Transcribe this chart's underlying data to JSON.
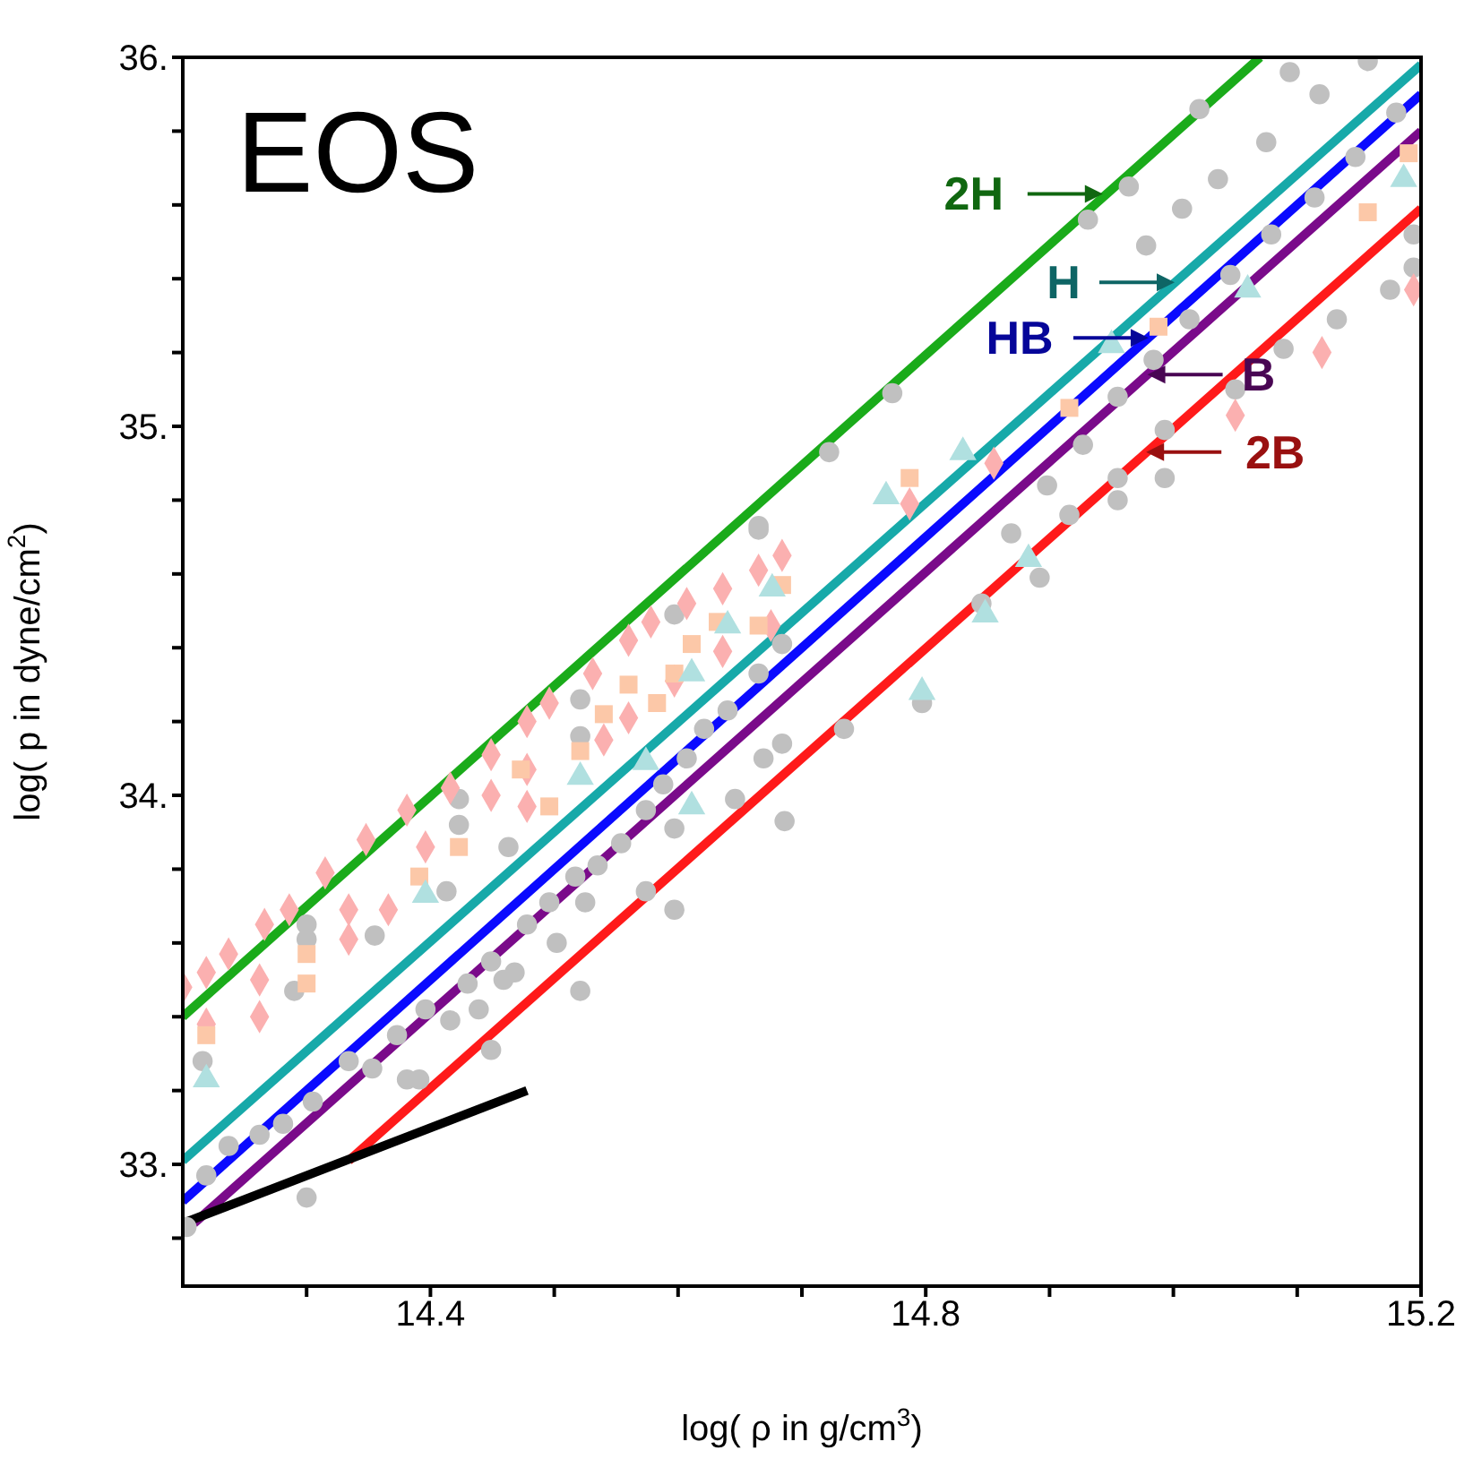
{
  "chart_data": {
    "type": "scatter",
    "title": "EOS",
    "xlabel": "log( ρ in g/cm$^{3}$)",
    "ylabel": "log( p in dyne/cm$^{2}$)",
    "xlim": [
      14.2,
      15.2
    ],
    "ylim": [
      32.67,
      36.0
    ],
    "xticks": [
      {
        "value": 14.3,
        "label": null
      },
      {
        "value": 14.4,
        "label": "14.4"
      },
      {
        "value": 14.5,
        "label": null
      },
      {
        "value": 14.6,
        "label": null
      },
      {
        "value": 14.7,
        "label": null
      },
      {
        "value": 14.8,
        "label": "14.8"
      },
      {
        "value": 14.9,
        "label": null
      },
      {
        "value": 15.0,
        "label": null
      },
      {
        "value": 15.1,
        "label": null
      },
      {
        "value": 15.2,
        "label": "15.2"
      }
    ],
    "yticks": [
      {
        "value": 32.8,
        "label": null
      },
      {
        "value": 33,
        "label": "33."
      },
      {
        "value": 33.2,
        "label": null
      },
      {
        "value": 33.4,
        "label": null
      },
      {
        "value": 33.6,
        "label": null
      },
      {
        "value": 33.8,
        "label": null
      },
      {
        "value": 34,
        "label": "34."
      },
      {
        "value": 34.2,
        "label": null
      },
      {
        "value": 34.4,
        "label": null
      },
      {
        "value": 34.6,
        "label": null
      },
      {
        "value": 34.8,
        "label": null
      },
      {
        "value": 35,
        "label": "35."
      },
      {
        "value": 35.2,
        "label": null
      },
      {
        "value": 35.4,
        "label": null
      },
      {
        "value": 35.6,
        "label": null
      },
      {
        "value": 35.8,
        "label": null
      },
      {
        "value": 36,
        "label": "36."
      }
    ],
    "series": [
      {
        "marker": "circle",
        "color": "#c0c0c0",
        "x": [
          14.391,
          14.449,
          14.521,
          14.597,
          14.686,
          14.797,
          14.892,
          14.993,
          15.194,
          14.3,
          14.459,
          14.525,
          14.597,
          14.669,
          14.734,
          14.845,
          14.955,
          15.194,
          14.964,
          15.007,
          15.036,
          15.075,
          15.118,
          15.157,
          14.931,
          14.978,
          15.021,
          15.094,
          14.773,
          14.722,
          14.665,
          14.3,
          14.3,
          14.29,
          14.355,
          14.423,
          14.423,
          14.463,
          14.413,
          14.521,
          14.521,
          14.597,
          14.665,
          14.216,
          14.203,
          14.219,
          14.237,
          14.262,
          14.281,
          14.305,
          14.334,
          14.353,
          14.373,
          14.381,
          14.396,
          14.416,
          14.43,
          14.449,
          14.468,
          14.478,
          14.496,
          14.517,
          14.535,
          14.554,
          14.574,
          14.588,
          14.607,
          14.621,
          14.64,
          14.665,
          14.684,
          14.684,
          14.646,
          14.574,
          14.502,
          14.439,
          14.869,
          14.898,
          14.927,
          14.955,
          14.984,
          15.013,
          15.046,
          15.079,
          15.114,
          15.147,
          15.18,
          15.05,
          15.089,
          15.132,
          15.175,
          14.955,
          14.916,
          14.993
        ],
        "values": [
          33.23,
          33.31,
          33.47,
          33.69,
          33.93,
          34.25,
          34.59,
          34.86,
          35.43,
          32.91,
          33.5,
          33.71,
          33.91,
          34.1,
          34.18,
          34.52,
          34.8,
          35.52,
          35.65,
          35.59,
          35.67,
          35.77,
          35.9,
          35.99,
          35.56,
          35.49,
          35.86,
          35.96,
          35.09,
          34.93,
          34.72,
          33.65,
          33.61,
          33.47,
          33.62,
          33.99,
          33.92,
          33.86,
          33.74,
          34.26,
          34.16,
          34.49,
          34.73,
          33.28,
          32.83,
          32.97,
          33.05,
          33.08,
          33.11,
          33.17,
          33.28,
          33.26,
          33.35,
          33.23,
          33.42,
          33.39,
          33.49,
          33.55,
          33.52,
          33.65,
          33.71,
          33.78,
          33.81,
          33.87,
          33.96,
          34.03,
          34.1,
          34.18,
          34.23,
          34.33,
          34.41,
          34.14,
          33.99,
          33.74,
          33.6,
          33.42,
          34.71,
          34.84,
          34.95,
          35.08,
          35.18,
          35.29,
          35.41,
          35.52,
          35.62,
          35.73,
          35.85,
          35.1,
          35.21,
          35.29,
          35.37,
          34.86,
          34.76,
          34.99
        ]
      },
      {
        "marker": "diamond",
        "color": "#fbb0b0",
        "x": [
          14.2,
          14.219,
          14.237,
          14.266,
          14.286,
          14.315,
          14.348,
          14.381,
          14.416,
          14.449,
          14.478,
          14.496,
          14.531,
          14.56,
          14.578,
          14.607,
          14.636,
          14.665,
          14.684,
          14.787,
          14.855,
          15.05,
          15.12,
          15.194,
          14.219,
          14.262,
          14.262,
          14.334,
          14.334,
          14.366,
          14.396,
          14.449,
          14.478,
          14.478,
          14.54,
          14.56,
          14.597,
          14.636,
          14.675
        ],
        "values": [
          33.48,
          33.52,
          33.57,
          33.65,
          33.69,
          33.79,
          33.88,
          33.96,
          34.02,
          34.11,
          34.2,
          34.25,
          34.33,
          34.42,
          34.47,
          34.52,
          34.56,
          34.61,
          34.65,
          34.79,
          34.9,
          35.03,
          35.2,
          35.37,
          33.38,
          33.4,
          33.5,
          33.61,
          33.69,
          33.69,
          33.86,
          34.0,
          33.97,
          34.07,
          34.15,
          34.21,
          34.31,
          34.39,
          34.46
        ]
      },
      {
        "marker": "square",
        "color": "#fcc8a8",
        "x": [
          14.219,
          14.3,
          14.3,
          14.391,
          14.423,
          14.473,
          14.496,
          14.521,
          14.54,
          14.56,
          14.583,
          14.597,
          14.611,
          14.632,
          14.665,
          14.684,
          14.787,
          14.916,
          14.988,
          15.157,
          15.19
        ],
        "values": [
          33.35,
          33.57,
          33.49,
          33.78,
          33.86,
          34.07,
          33.97,
          34.12,
          34.22,
          34.3,
          34.25,
          34.33,
          34.41,
          34.47,
          34.46,
          34.57,
          34.86,
          35.05,
          35.27,
          35.58,
          35.74
        ]
      },
      {
        "marker": "triangle",
        "color": "#b0e0e0",
        "x": [
          14.219,
          14.396,
          14.521,
          14.574,
          14.611,
          14.611,
          14.64,
          14.676,
          14.768,
          14.83,
          14.95,
          15.06,
          15.186,
          14.883,
          14.848,
          14.797
        ],
        "values": [
          33.23,
          33.73,
          34.05,
          34.09,
          34.33,
          33.97,
          34.46,
          34.56,
          34.81,
          34.93,
          35.22,
          35.37,
          35.67,
          34.64,
          34.49,
          34.28
        ]
      },
      {
        "type": "line",
        "marker": "none",
        "color": "#1aab1a",
        "x": [
          14.2,
          15.07
        ],
        "values": [
          33.4,
          36.0
        ]
      },
      {
        "type": "line",
        "marker": "none",
        "color": "#17a9a9",
        "x": [
          14.2,
          15.2
        ],
        "values": [
          33.01,
          35.98
        ]
      },
      {
        "type": "line",
        "marker": "none",
        "color": "#0a0aff",
        "x": [
          14.2,
          15.2
        ],
        "values": [
          32.9,
          35.9
        ]
      },
      {
        "type": "line",
        "marker": "none",
        "color": "#7a0a8a",
        "x": [
          14.209,
          15.2
        ],
        "values": [
          32.84,
          35.8
        ]
      },
      {
        "type": "line",
        "marker": "none",
        "color": "#ff1a1a",
        "x": [
          14.334,
          15.2
        ],
        "values": [
          33.01,
          35.59
        ]
      },
      {
        "type": "line",
        "marker": "none",
        "color": "#000000",
        "x": [
          14.2,
          14.478
        ],
        "values": [
          32.84,
          33.2
        ]
      }
    ],
    "annotations": [
      {
        "text": "2H",
        "x": 14.943,
        "y": 35.63
      },
      {
        "text": "H",
        "x": 15.001,
        "y": 35.39
      },
      {
        "text": "HB",
        "x": 14.98,
        "y": 35.24
      },
      {
        "text": "B",
        "x": 14.979,
        "y": 35.14
      },
      {
        "text": "2B",
        "x": 14.978,
        "y": 34.93
      }
    ]
  }
}
